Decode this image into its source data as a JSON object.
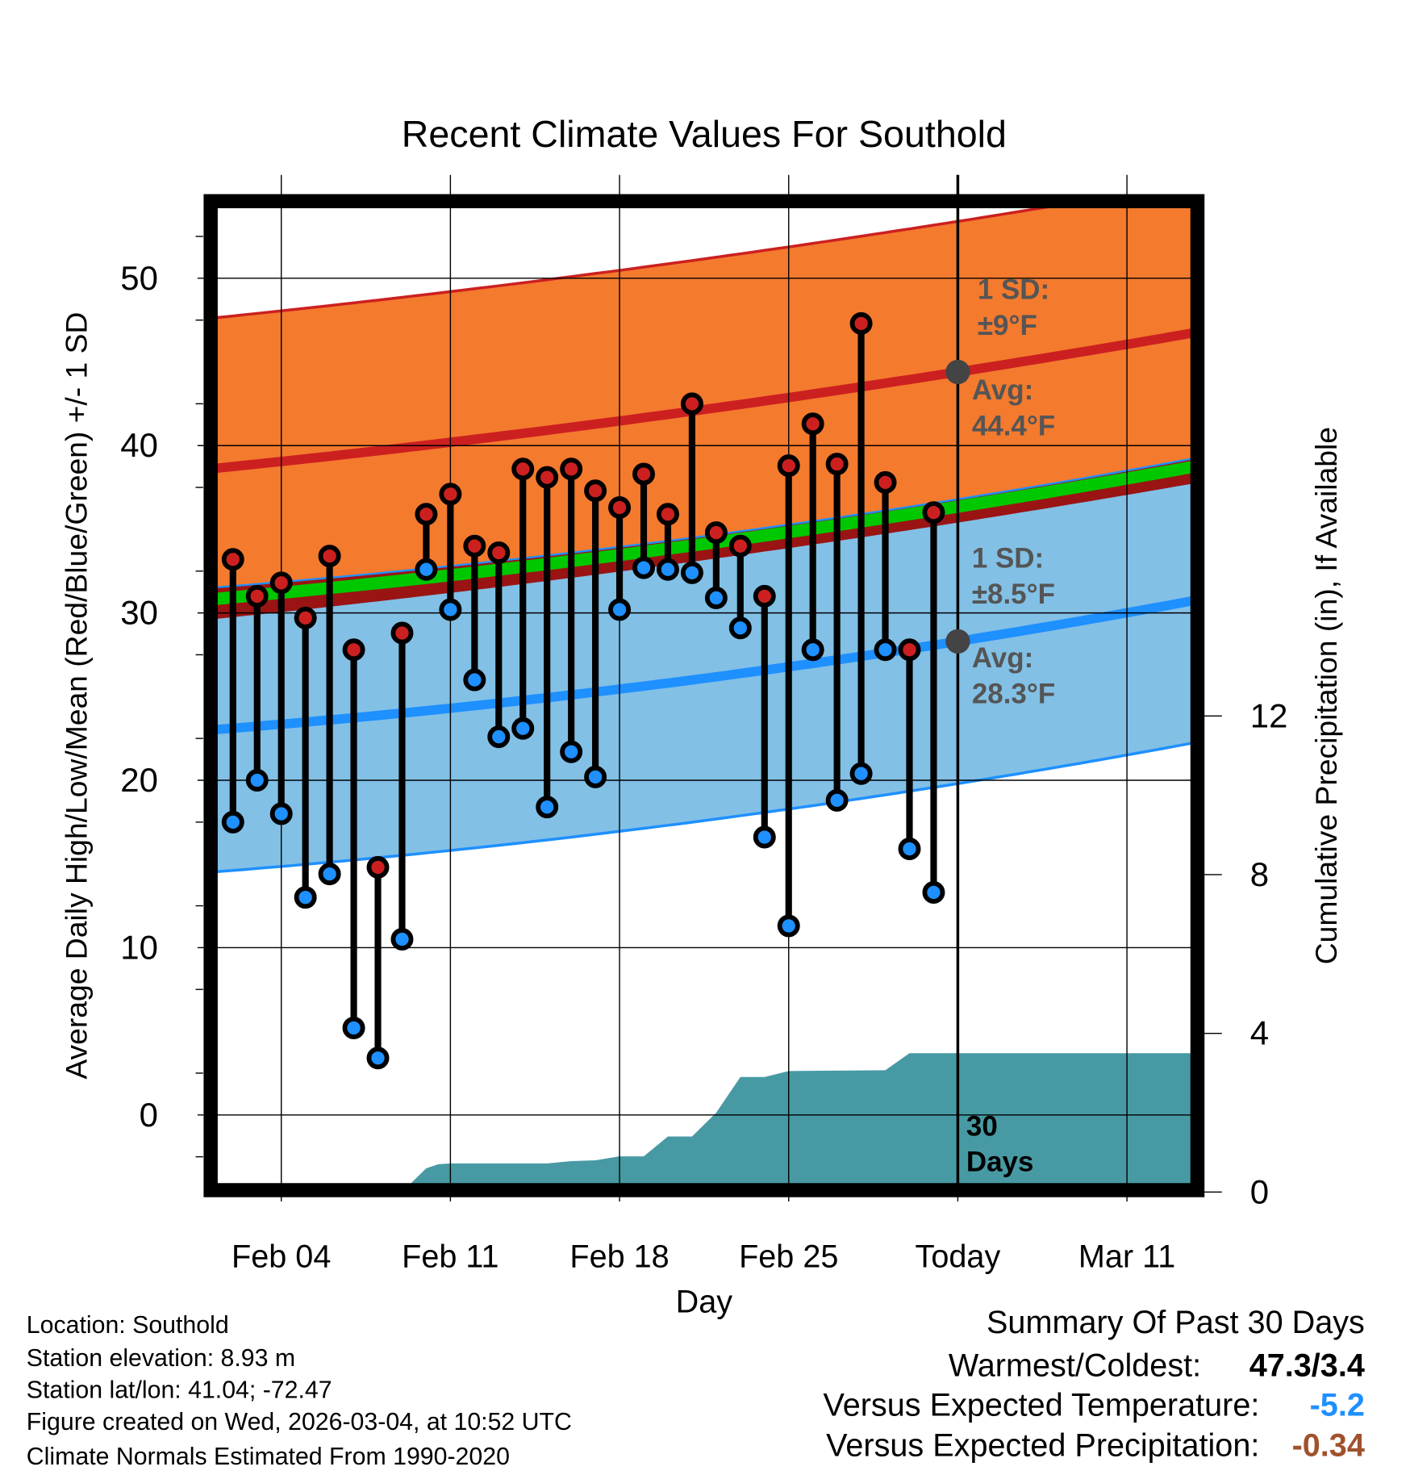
{
  "chart_data": {
    "type": "line",
    "title": "Recent Climate Values For Southold",
    "xlabel": "Day",
    "ylabel": "Average Daily High/Low/Mean (Red/Blue/Green) +/- 1 SD",
    "ylabel_right": "Cumulative Precipitation (in), If Available",
    "x_ticks": [
      {
        "day": 3,
        "label": "Feb 04"
      },
      {
        "day": 10,
        "label": "Feb 11"
      },
      {
        "day": 17,
        "label": "Feb 18"
      },
      {
        "day": 24,
        "label": "Feb 25"
      },
      {
        "day": 31,
        "label": "Today"
      },
      {
        "day": 38,
        "label": "Mar 11"
      }
    ],
    "xlim": [
      0,
      41
    ],
    "ylim": [
      -4.2,
      54.6
    ],
    "y_ticks": [
      0,
      10,
      20,
      30,
      40,
      50
    ],
    "ylim_right": [
      0,
      12.5
    ],
    "y_ticks_right": [
      0,
      4,
      8,
      12
    ],
    "grid": true,
    "normals": {
      "days": [
        0,
        31,
        41
      ],
      "avg_high": [
        38.6,
        44.4,
        46.8
      ],
      "avg_low": [
        23.0,
        28.3,
        30.8
      ],
      "high_sd": 9,
      "low_sd": 8.5
    },
    "observed": {
      "days": [
        1,
        2,
        3,
        4,
        5,
        6,
        7,
        8,
        9,
        10,
        11,
        12,
        13,
        14,
        15,
        16,
        17,
        18,
        19,
        20,
        21,
        22,
        23,
        24,
        25,
        26,
        27,
        28,
        29,
        30
      ],
      "high": [
        33.2,
        31.0,
        31.8,
        29.7,
        33.4,
        27.8,
        14.8,
        28.8,
        35.9,
        37.1,
        34.0,
        33.6,
        38.6,
        38.1,
        38.6,
        37.3,
        36.3,
        38.3,
        35.9,
        42.5,
        34.8,
        34.0,
        31.0,
        38.8,
        41.3,
        38.9,
        47.3,
        37.8,
        27.8,
        36.0
      ],
      "low": [
        17.5,
        20.0,
        18.0,
        13.0,
        14.4,
        5.2,
        3.4,
        10.5,
        32.6,
        30.2,
        26.0,
        22.6,
        23.1,
        18.4,
        21.7,
        20.2,
        30.2,
        32.7,
        32.6,
        32.4,
        30.9,
        29.1,
        16.6,
        11.3,
        27.8,
        18.8,
        20.4,
        27.8,
        15.9,
        13.3
      ]
    },
    "precip": {
      "days": [
        0,
        8,
        9,
        9.5,
        10,
        14,
        15,
        16,
        17,
        18,
        19,
        20,
        21,
        22,
        23,
        24,
        28,
        29,
        41
      ],
      "cumulative_in": [
        0,
        0,
        0.6,
        0.7,
        0.72,
        0.72,
        0.78,
        0.8,
        0.9,
        0.9,
        1.4,
        1.4,
        2.0,
        2.9,
        2.9,
        3.05,
        3.07,
        3.5,
        3.5
      ]
    },
    "annotations": {
      "high_sd_label": [
        "1 SD:",
        "±9°F"
      ],
      "high_avg_label": [
        "Avg:",
        "44.4°F"
      ],
      "low_sd_label": [
        "1 SD:",
        "±8.5°F"
      ],
      "low_avg_label": [
        "Avg:",
        "28.3°F"
      ],
      "today_label": [
        "30",
        "Days"
      ]
    },
    "colors": {
      "orange": "#f47a2e",
      "red": "#cc2020",
      "darkred": "#9a1414",
      "green": "#00c800",
      "lightblue": "#82c0e6",
      "blue": "#1e90ff",
      "teal": "#479aa3"
    }
  },
  "footer": {
    "lines": [
      "Location: Southold",
      "Station elevation: 8.93 m",
      "Station lat/lon: 41.04; -72.47",
      "Figure created on Wed, 2026-03-04, at 10:52 UTC",
      "Climate Normals Estimated From 1990-2020"
    ]
  },
  "summary": {
    "title": "Summary Of Past 30 Days",
    "rows": [
      {
        "label": "Warmest/Coldest:",
        "value": "47.3/3.4",
        "color": "#000000"
      },
      {
        "label": "Versus Expected Temperature:",
        "value": "-5.2",
        "color": "#1e90ff"
      },
      {
        "label": "Versus Expected Precipitation:",
        "value": "-0.34",
        "color": "#a0522d"
      }
    ]
  }
}
